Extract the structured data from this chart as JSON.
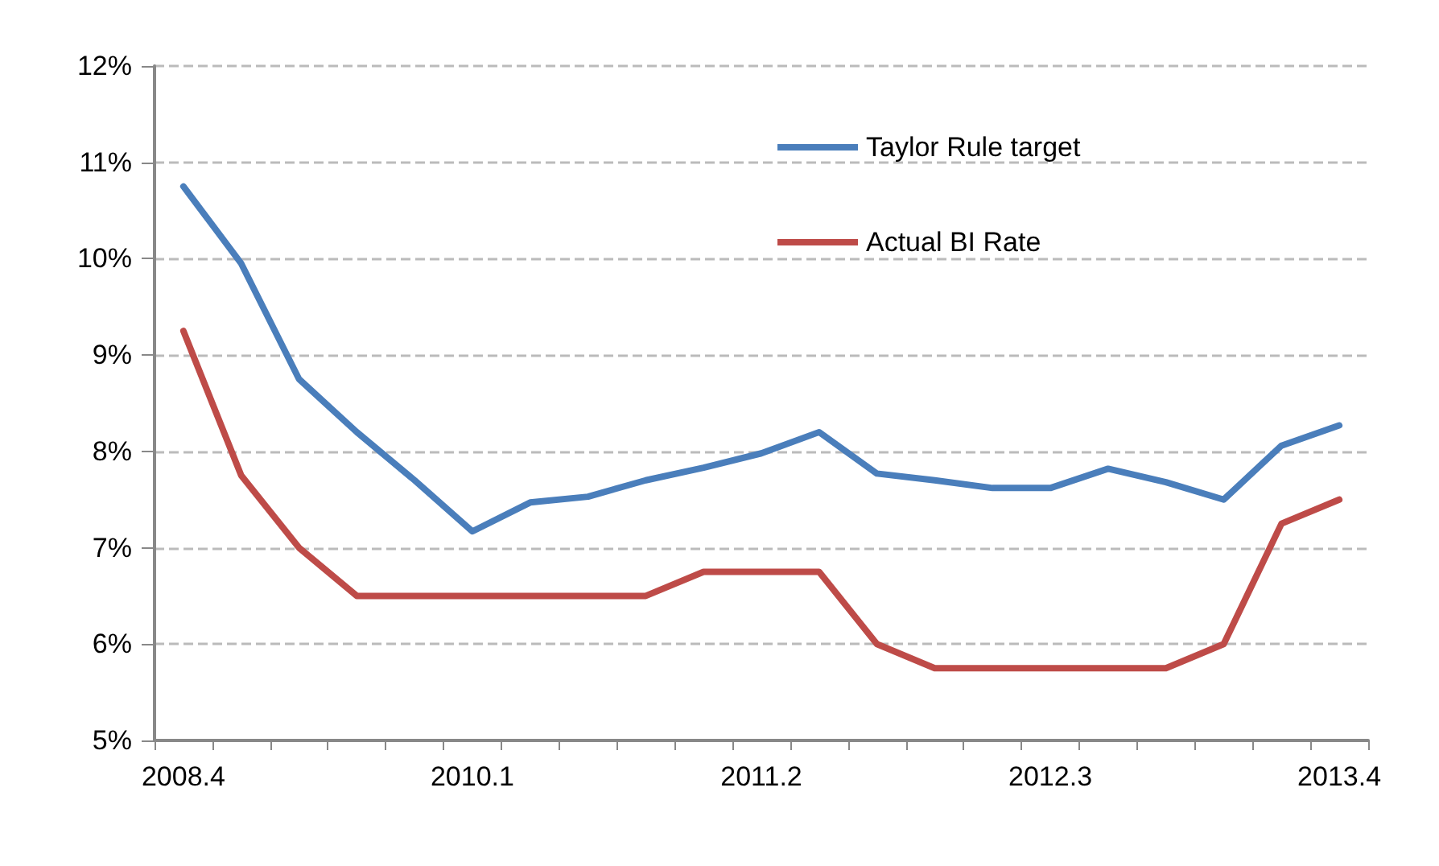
{
  "chart_data": {
    "type": "line",
    "categories": [
      "2008.4",
      null,
      null,
      null,
      null,
      "2010.1",
      null,
      null,
      null,
      null,
      "2011.2",
      null,
      null,
      null,
      null,
      "2012.3",
      null,
      null,
      null,
      null,
      "2013.4"
    ],
    "series": [
      {
        "name": "Taylor Rule target",
        "color": "#4a7ebb",
        "values": [
          10.75,
          9.95,
          8.75,
          8.2,
          7.7,
          7.17,
          7.47,
          7.53,
          7.7,
          7.83,
          7.98,
          8.2,
          7.77,
          7.7,
          7.62,
          7.62,
          7.82,
          7.68,
          7.5,
          8.06,
          8.27
        ]
      },
      {
        "name": "Actual BI Rate",
        "color": "#be4b48",
        "values": [
          9.25,
          7.75,
          7.0,
          6.5,
          6.5,
          6.5,
          6.5,
          6.5,
          6.5,
          6.75,
          6.75,
          6.75,
          6.0,
          5.75,
          5.75,
          5.75,
          5.75,
          5.75,
          6.0,
          7.25,
          7.5
        ]
      }
    ],
    "ylim": [
      5,
      12
    ],
    "yticks": [
      {
        "value": 5,
        "label": "5%"
      },
      {
        "value": 6,
        "label": "6%"
      },
      {
        "value": 7,
        "label": "7%"
      },
      {
        "value": 8,
        "label": "8%"
      },
      {
        "value": 9,
        "label": "9%"
      },
      {
        "value": 10,
        "label": "10%"
      },
      {
        "value": 11,
        "label": "11%"
      },
      {
        "value": 12,
        "label": "12%"
      }
    ],
    "grid": "y",
    "legend": "top right",
    "marker": "none",
    "line_style": "solid"
  }
}
